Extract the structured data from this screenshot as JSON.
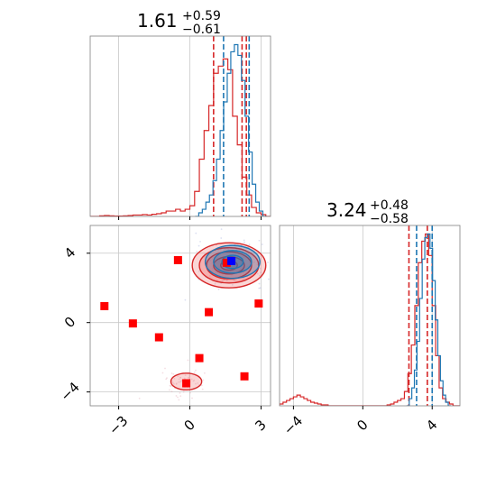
{
  "colors": {
    "red": "#d62728",
    "blue": "#1f77b4",
    "marker_red": "#ff0000",
    "marker_blue": "#0000ff",
    "fill_red": "#f08080"
  },
  "chart_data": [
    {
      "type": "histogram",
      "panel": "param1-marginal",
      "title": {
        "value": "1.61",
        "upper": "+0.59",
        "lower": "−0.61"
      },
      "xlim": [
        -4.2,
        3.4
      ],
      "grid": true,
      "series": [
        {
          "color": "#d62728",
          "bin_centers": [
            -4.1,
            -3.9,
            -3.7,
            -3.5,
            -3.3,
            -3.1,
            -2.9,
            -2.7,
            -2.5,
            -2.3,
            -2.1,
            -1.9,
            -1.7,
            -1.5,
            -1.3,
            -1.1,
            -0.9,
            -0.7,
            -0.5,
            -0.3,
            -0.1,
            0.1,
            0.3,
            0.5,
            0.7,
            0.9,
            1.1,
            1.3,
            1.5,
            1.7,
            1.9,
            2.1,
            2.3,
            2.5,
            2.7,
            2.9,
            3.1,
            3.3
          ],
          "counts": [
            0,
            0,
            0.3,
            0.5,
            0.3,
            0.2,
            0.2,
            0.3,
            0.5,
            0.8,
            0.8,
            1.0,
            0.8,
            1.2,
            1.5,
            2,
            3,
            3,
            4,
            3,
            4,
            6,
            14,
            32,
            48,
            62,
            80,
            84,
            88,
            82,
            56,
            40,
            22,
            12,
            5,
            2,
            1,
            0
          ],
          "credible_interval_lines": [
            1.0,
            2.2,
            2.38
          ]
        },
        {
          "color": "#1f77b4",
          "bin_centers": [
            0.3,
            0.45,
            0.6,
            0.75,
            0.9,
            1.05,
            1.2,
            1.35,
            1.5,
            1.65,
            1.8,
            1.95,
            2.1,
            2.25,
            2.4,
            2.55,
            2.7,
            2.85,
            3.0,
            3.15
          ],
          "counts": [
            0,
            2,
            4,
            8,
            12,
            20,
            32,
            48,
            64,
            80,
            92,
            96,
            90,
            76,
            56,
            36,
            18,
            8,
            3,
            0
          ],
          "credible_interval_lines": [
            1.42,
            2.5
          ]
        }
      ]
    },
    {
      "type": "scatter",
      "panel": "joint-2d",
      "xlim": [
        -4.2,
        3.4
      ],
      "ylim": [
        -4.8,
        5.6
      ],
      "xticks": [
        "−3",
        "0",
        "3"
      ],
      "yticks": [
        "−4",
        "0",
        "4"
      ],
      "grid": true,
      "contours": [
        {
          "color": "#d62728",
          "center": [
            1.65,
            3.3
          ],
          "radii": [
            [
              1.55,
              1.3
            ],
            [
              1.25,
              1.02
            ],
            [
              0.95,
              0.78
            ],
            [
              0.65,
              0.5
            ],
            [
              0.35,
              0.28
            ]
          ]
        },
        {
          "color": "#d62728",
          "center": [
            -0.15,
            -3.4
          ],
          "radii": [
            [
              0.65,
              0.48
            ]
          ]
        },
        {
          "color": "#1f77b4",
          "center": [
            1.8,
            3.5
          ],
          "radii": [
            [
              1.15,
              0.95
            ],
            [
              0.8,
              0.65
            ],
            [
              0.45,
              0.38
            ]
          ]
        }
      ],
      "red_markers": [
        {
          "x": -3.6,
          "y": 0.95
        },
        {
          "x": -2.4,
          "y": -0.05
        },
        {
          "x": -1.3,
          "y": -0.85
        },
        {
          "x": -0.5,
          "y": 3.6
        },
        {
          "x": 0.8,
          "y": 0.6
        },
        {
          "x": 0.4,
          "y": -2.05
        },
        {
          "x": -0.15,
          "y": -3.5
        },
        {
          "x": 2.3,
          "y": -3.1
        },
        {
          "x": 2.9,
          "y": 1.1
        },
        {
          "x": 1.55,
          "y": 3.45
        }
      ],
      "blue_markers": [
        {
          "x": 1.75,
          "y": 3.55
        }
      ]
    },
    {
      "type": "histogram",
      "panel": "param2-marginal",
      "title": {
        "value": "3.24",
        "upper": "+0.48",
        "lower": "−0.58"
      },
      "xlim": [
        -4.8,
        5.6
      ],
      "xticks": [
        "−4",
        "0",
        "4"
      ],
      "grid": true,
      "series": [
        {
          "color": "#d62728",
          "bin_centers": [
            -4.7,
            -4.5,
            -4.3,
            -4.1,
            -3.9,
            -3.7,
            -3.5,
            -3.3,
            -3.1,
            -2.9,
            -2.7,
            -2.5,
            -2.3,
            -2.1,
            -1.9,
            -1.7,
            -1.5,
            -1.3,
            -1.1,
            -0.9,
            -0.7,
            -0.5,
            -0.3,
            -0.1,
            0.1,
            0.3,
            0.5,
            0.7,
            0.9,
            1.1,
            1.3,
            1.5,
            1.7,
            1.9,
            2.1,
            2.3,
            2.5,
            2.7,
            2.9,
            3.1,
            3.3,
            3.5,
            3.7,
            3.9,
            4.1,
            4.3,
            4.5,
            4.7,
            4.9,
            5.1,
            5.3,
            5.5
          ],
          "counts": [
            1,
            2,
            3,
            4,
            5,
            6,
            5,
            4,
            3,
            2,
            1.5,
            1,
            0.5,
            0.5,
            0,
            0,
            0,
            0,
            0,
            0,
            0,
            0,
            0,
            0,
            0,
            0,
            0,
            0,
            0,
            0,
            0,
            0.5,
            1,
            2,
            3,
            4,
            8,
            18,
            34,
            56,
            80,
            92,
            96,
            84,
            56,
            28,
            10,
            4,
            2,
            1,
            0,
            0
          ],
          "credible_interval_lines": [
            2.66,
            3.72
          ]
        },
        {
          "color": "#1f77b4",
          "bin_centers": [
            2.6,
            2.75,
            2.9,
            3.05,
            3.2,
            3.35,
            3.5,
            3.65,
            3.8,
            3.95,
            4.1,
            4.25,
            4.4,
            4.55,
            4.7,
            4.85,
            5.0
          ],
          "counts": [
            0,
            4,
            10,
            20,
            36,
            60,
            82,
            94,
            96,
            88,
            70,
            48,
            28,
            14,
            6,
            2,
            0
          ],
          "credible_interval_lines": [
            3.1,
            4.0
          ]
        }
      ]
    }
  ]
}
